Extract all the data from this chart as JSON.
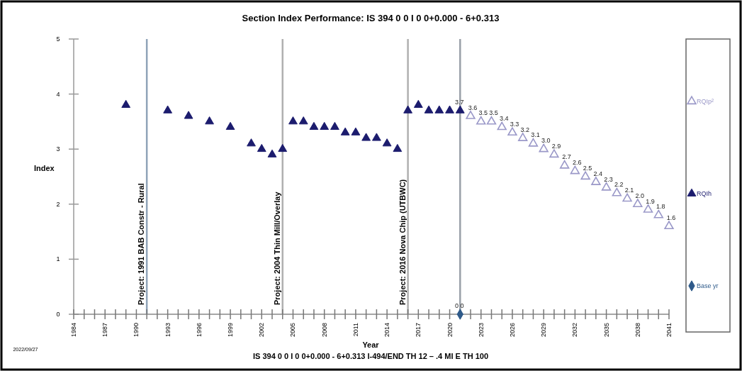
{
  "chart_data": {
    "type": "scatter",
    "title": "Section Index Performance: IS 394 0 0 I 0 0+0.000 - 6+0.313",
    "xlabel": "Year",
    "ylabel": "Index",
    "annotations": [
      "IS 394 0 0 I 0 0+0.000 - 6+0.313 I-494/END TH 12 – .4 MI E TH 100",
      "2022/09/27"
    ],
    "xlim": [
      1984,
      2041
    ],
    "xticks": [
      1984,
      {
        "value": 1985,
        "label": null
      },
      {
        "value": 1986,
        "label": null
      },
      1987,
      {
        "value": 1988,
        "label": null
      },
      {
        "value": 1989,
        "label": null
      },
      1990,
      {
        "value": 1991,
        "label": null
      },
      {
        "value": 1992,
        "label": null
      },
      1993,
      {
        "value": 1994,
        "label": null
      },
      {
        "value": 1995,
        "label": null
      },
      1996,
      {
        "value": 1997,
        "label": null
      },
      {
        "value": 1998,
        "label": null
      },
      1999,
      {
        "value": 2000,
        "label": null
      },
      {
        "value": 2001,
        "label": null
      },
      2002,
      {
        "value": 2003,
        "label": null
      },
      {
        "value": 2004,
        "label": null
      },
      2005,
      {
        "value": 2006,
        "label": null
      },
      {
        "value": 2007,
        "label": null
      },
      2008,
      {
        "value": 2009,
        "label": null
      },
      {
        "value": 2010,
        "label": null
      },
      2011,
      {
        "value": 2012,
        "label": null
      },
      {
        "value": 2013,
        "label": null
      },
      2014,
      {
        "value": 2015,
        "label": null
      },
      {
        "value": 2016,
        "label": null
      },
      2017,
      {
        "value": 2018,
        "label": null
      },
      {
        "value": 2019,
        "label": null
      },
      2020,
      {
        "value": 2021,
        "label": null
      },
      {
        "value": 2022,
        "label": null
      },
      2023,
      {
        "value": 2024,
        "label": null
      },
      {
        "value": 2025,
        "label": null
      },
      2026,
      {
        "value": 2027,
        "label": null
      },
      {
        "value": 2028,
        "label": null
      },
      2029,
      {
        "value": 2030,
        "label": null
      },
      {
        "value": 2031,
        "label": null
      },
      2032,
      {
        "value": 2033,
        "label": null
      },
      {
        "value": 2034,
        "label": null
      },
      2035,
      {
        "value": 2036,
        "label": null
      },
      {
        "value": 2037,
        "label": null
      },
      2038,
      {
        "value": 2039,
        "label": null
      },
      {
        "value": 2040,
        "label": null
      },
      2041
    ],
    "ylim": [
      0,
      5
    ],
    "yticks": [
      0,
      1,
      2,
      3,
      4,
      5
    ],
    "marker": "triangle",
    "legend": "right",
    "ref_lines": [
      {
        "axis": "x",
        "value": 1991,
        "label": "Project: 1991 BAB Constr - Rural",
        "color": "#8fa3b8"
      },
      {
        "axis": "x",
        "value": 2004,
        "label": "Project: 2004 Thin Mill/Overlay",
        "color": "#b0b0b0"
      },
      {
        "axis": "x",
        "value": 2016,
        "label": "Project: 2016 Nova Chip (UTBWC)",
        "color": "#b0b0b0"
      },
      {
        "axis": "x",
        "value": 2021,
        "color": "#9aa0a8"
      }
    ],
    "series": [
      {
        "name": "RQIp²",
        "color": "#9a98c8",
        "x": [
          2022,
          2023,
          2024,
          2025,
          2026,
          2027,
          2028,
          2029,
          2030,
          2031,
          2032,
          2033,
          2034,
          2035,
          2036,
          2037,
          2038,
          2039,
          2040,
          2041
        ],
        "values": [
          3.6,
          3.5,
          3.5,
          3.4,
          3.3,
          3.2,
          3.1,
          3.0,
          2.9,
          2.7,
          2.6,
          2.5,
          2.4,
          2.3,
          2.2,
          2.1,
          2.0,
          1.9,
          1.8,
          1.6
        ],
        "value_labels": [
          "3.6",
          "3.5",
          "3.5",
          "3.4",
          "3.3",
          "3.2",
          "3.1",
          "3.0",
          "2.9",
          "2.7",
          "2.6",
          "2.5",
          "2.4",
          "2.3",
          "2.2",
          "2.1",
          "2.0",
          "1.9",
          "1.8",
          "1.6"
        ]
      },
      {
        "name": "RQIh",
        "color": "#1c1c6e",
        "x": [
          1989,
          1993,
          1995,
          1997,
          1999,
          2001,
          2002,
          2003,
          2004,
          2005,
          2006,
          2007,
          2008,
          2009,
          2010,
          2011,
          2012,
          2013,
          2014,
          2015,
          2016,
          2017,
          2018,
          2019,
          2020,
          2021
        ],
        "values": [
          3.8,
          3.7,
          3.6,
          3.5,
          3.4,
          3.1,
          3.0,
          2.9,
          3.0,
          3.5,
          3.5,
          3.4,
          3.4,
          3.4,
          3.3,
          3.3,
          3.2,
          3.2,
          3.1,
          3.0,
          3.7,
          3.8,
          3.7,
          3.7,
          3.7,
          3.7
        ],
        "value_labels": [
          null,
          null,
          null,
          null,
          null,
          null,
          null,
          null,
          null,
          null,
          null,
          null,
          null,
          null,
          null,
          null,
          null,
          null,
          null,
          null,
          null,
          null,
          null,
          null,
          null,
          "3.7"
        ]
      },
      {
        "name": "Base yr",
        "color": "#2e5a8a",
        "marker": "diamond",
        "x": [
          2021
        ],
        "values": [
          0
        ],
        "value_labels": [
          "0 0"
        ]
      }
    ]
  }
}
